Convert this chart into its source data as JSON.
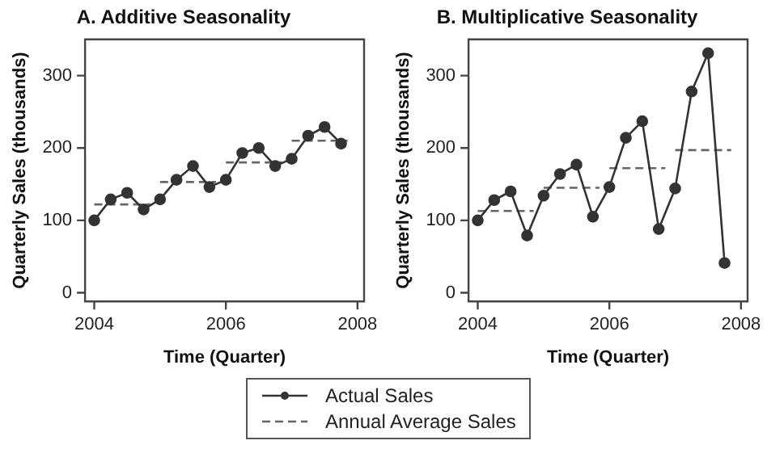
{
  "chart_data": [
    {
      "type": "line",
      "title": "A. Additive Seasonality",
      "xlabel": "Time (Quarter)",
      "ylabel": "Quarterly Sales (thousands)",
      "xlim": [
        2003.86,
        2008.1
      ],
      "ylim": [
        -12,
        350
      ],
      "xticks": [
        2004,
        2006,
        2008
      ],
      "yticks": [
        0,
        100,
        200,
        300
      ],
      "grid": false,
      "legend": "bottom",
      "series": [
        {
          "name": "Actual Sales",
          "color": "#333333",
          "marker": "circle",
          "line_style": "solid",
          "x": [
            2004,
            2004.25,
            2004.5,
            2004.75,
            2005,
            2005.25,
            2005.5,
            2005.75,
            2006,
            2006.25,
            2006.5,
            2006.75,
            2007,
            2007.25,
            2007.5,
            2007.75
          ],
          "values": [
            100,
            129,
            138,
            115,
            129,
            156,
            175,
            146,
            156,
            193,
            200,
            175,
            185,
            217,
            229,
            206
          ]
        },
        {
          "name": "Annual Average Sales",
          "color": "#666666",
          "marker": "none",
          "line_style": "dashed",
          "x": [
            2004,
            2004.85,
            2004.9,
            2005,
            2005.85,
            2005.9,
            2006,
            2006.85,
            2006.9,
            2007,
            2007.85
          ],
          "values": [
            122,
            122,
            null,
            153,
            153,
            null,
            180,
            180,
            null,
            210,
            210
          ]
        }
      ]
    },
    {
      "type": "line",
      "title": "B. Multiplicative Seasonality",
      "xlabel": "Time (Quarter)",
      "ylabel": "Quarterly Sales (thousands)",
      "xlim": [
        2003.86,
        2008.1
      ],
      "ylim": [
        -12,
        350
      ],
      "xticks": [
        2004,
        2006,
        2008
      ],
      "yticks": [
        0,
        100,
        200,
        300
      ],
      "grid": false,
      "series": [
        {
          "name": "Actual Sales",
          "color": "#333333",
          "marker": "circle",
          "line_style": "solid",
          "x": [
            2004,
            2004.25,
            2004.5,
            2004.75,
            2005,
            2005.25,
            2005.5,
            2005.75,
            2006,
            2006.25,
            2006.5,
            2006.75,
            2007,
            2007.25,
            2007.5,
            2007.75
          ],
          "values": [
            100,
            128,
            140,
            79,
            134,
            164,
            177,
            105,
            146,
            214,
            237,
            88,
            144,
            278,
            331,
            41
          ]
        },
        {
          "name": "Annual Average Sales",
          "color": "#666666",
          "marker": "none",
          "line_style": "dashed",
          "x": [
            2004,
            2004.85,
            2004.9,
            2005,
            2005.85,
            2005.9,
            2006,
            2006.85,
            2006.9,
            2007,
            2007.85
          ],
          "values": [
            113,
            113,
            null,
            145,
            145,
            null,
            172,
            172,
            null,
            197,
            197
          ]
        }
      ]
    }
  ]
}
